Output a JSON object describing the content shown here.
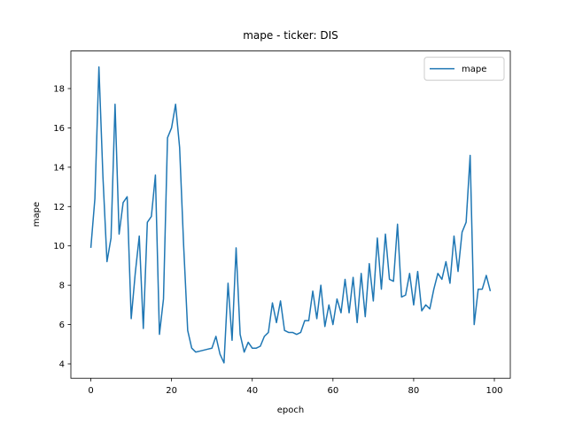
{
  "chart_data": {
    "type": "line",
    "title": "mape - ticker: DIS",
    "xlabel": "epoch",
    "ylabel": "mape",
    "x": [
      0,
      1,
      2,
      3,
      4,
      5,
      6,
      7,
      8,
      9,
      10,
      11,
      12,
      13,
      14,
      15,
      16,
      17,
      18,
      19,
      20,
      21,
      22,
      23,
      24,
      25,
      26,
      27,
      28,
      29,
      30,
      31,
      32,
      33,
      34,
      35,
      36,
      37,
      38,
      39,
      40,
      41,
      42,
      43,
      44,
      45,
      46,
      47,
      48,
      49,
      50,
      51,
      52,
      53,
      54,
      55,
      56,
      57,
      58,
      59,
      60,
      61,
      62,
      63,
      64,
      65,
      66,
      67,
      68,
      69,
      70,
      71,
      72,
      73,
      74,
      75,
      76,
      77,
      78,
      79,
      80,
      81,
      82,
      83,
      84,
      85,
      86,
      87,
      88,
      89,
      90,
      91,
      92,
      93,
      94,
      95,
      96,
      97,
      98,
      99
    ],
    "series": [
      {
        "name": "mape",
        "color": "#1f77b4",
        "values": [
          9.9,
          12.4,
          19.1,
          13.5,
          9.2,
          10.4,
          17.2,
          10.6,
          12.2,
          12.5,
          6.3,
          8.6,
          10.5,
          5.8,
          11.2,
          11.5,
          13.6,
          5.5,
          7.3,
          15.5,
          16.0,
          17.2,
          15.0,
          10.0,
          5.7,
          4.8,
          4.6,
          4.65,
          4.7,
          4.75,
          4.8,
          5.4,
          4.5,
          4.05,
          8.1,
          5.2,
          9.9,
          5.5,
          4.6,
          5.1,
          4.8,
          4.8,
          4.9,
          5.4,
          5.6,
          7.1,
          6.1,
          7.2,
          5.7,
          5.6,
          5.6,
          5.5,
          5.6,
          6.2,
          6.2,
          7.7,
          6.3,
          8.0,
          5.9,
          7.0,
          6.0,
          7.3,
          6.6,
          8.3,
          6.6,
          8.4,
          6.1,
          8.6,
          6.4,
          9.1,
          7.2,
          10.4,
          7.8,
          10.6,
          8.3,
          8.2,
          11.1,
          7.4,
          7.5,
          8.6,
          7.0,
          8.7,
          6.7,
          7.0,
          6.8,
          7.8,
          8.6,
          8.3,
          9.2,
          8.1,
          10.5,
          8.7,
          10.7,
          11.2,
          14.6,
          6.0,
          7.8,
          7.8,
          8.5,
          7.7
        ]
      }
    ],
    "xlim": [
      -4.95,
      103.95
    ],
    "ylim": [
      3.27,
      19.91
    ],
    "xticks": [
      0,
      20,
      40,
      60,
      80,
      100
    ],
    "yticks": [
      4,
      6,
      8,
      10,
      12,
      14,
      16,
      18
    ],
    "legend": "upper right",
    "grid": false
  }
}
